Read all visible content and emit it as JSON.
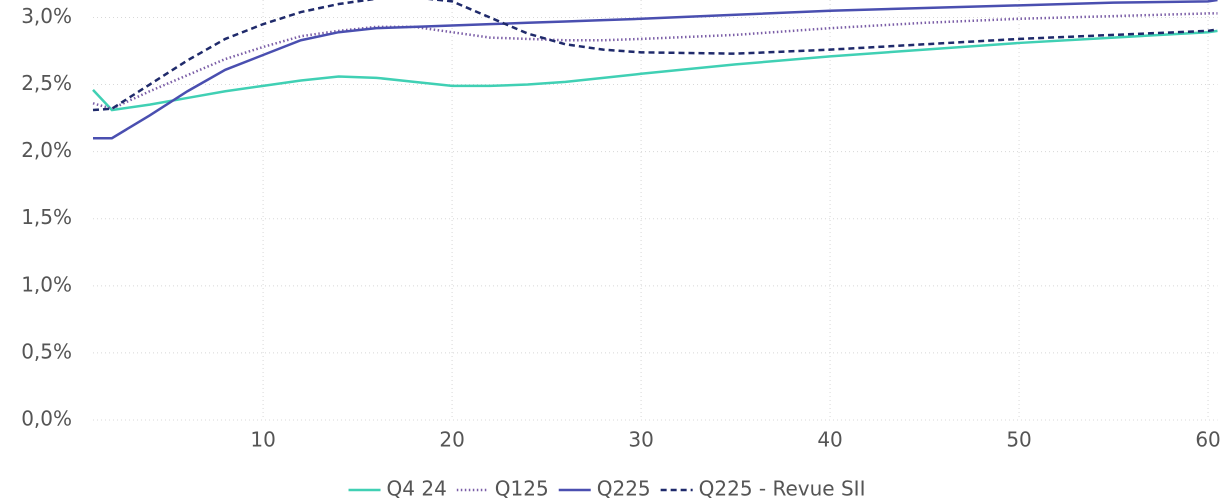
{
  "chart_data": {
    "type": "line",
    "x": [
      1,
      2,
      4,
      6,
      8,
      10,
      12,
      14,
      16,
      18,
      20,
      22,
      24,
      26,
      28,
      30,
      35,
      40,
      45,
      50,
      55,
      60,
      60.5
    ],
    "series": [
      {
        "name": "Q4 24",
        "color": "#40d0b4",
        "dash": "solid",
        "values": [
          2.46,
          2.31,
          2.35,
          2.4,
          2.45,
          2.49,
          2.53,
          2.56,
          2.55,
          2.52,
          2.49,
          2.49,
          2.5,
          2.52,
          2.55,
          2.58,
          2.65,
          2.71,
          2.76,
          2.81,
          2.85,
          2.89,
          2.9
        ]
      },
      {
        "name": "Q125",
        "color": "#7b5ea7",
        "dash": "dotted",
        "values": [
          2.36,
          2.32,
          2.45,
          2.57,
          2.69,
          2.78,
          2.86,
          2.9,
          2.93,
          2.93,
          2.89,
          2.85,
          2.84,
          2.83,
          2.83,
          2.84,
          2.87,
          2.92,
          2.96,
          2.99,
          3.01,
          3.03,
          3.03
        ]
      },
      {
        "name": "Q225",
        "color": "#4a4fb0",
        "dash": "solid",
        "values": [
          2.1,
          2.1,
          2.27,
          2.45,
          2.61,
          2.72,
          2.83,
          2.89,
          2.92,
          2.93,
          2.94,
          2.95,
          2.96,
          2.97,
          2.98,
          2.99,
          3.02,
          3.05,
          3.07,
          3.09,
          3.11,
          3.12,
          3.13
        ]
      },
      {
        "name": "Q225 - Revue SII",
        "color": "#1f2a6b",
        "dash": "dashed",
        "values": [
          2.31,
          2.32,
          2.5,
          2.68,
          2.84,
          2.95,
          3.04,
          3.1,
          3.14,
          3.15,
          3.12,
          3.0,
          2.88,
          2.8,
          2.76,
          2.74,
          2.73,
          2.76,
          2.8,
          2.84,
          2.87,
          2.9,
          2.91
        ]
      }
    ],
    "xlim": [
      1,
      60.5
    ],
    "xticks": [
      10,
      20,
      30,
      40,
      50,
      60
    ],
    "ylim": [
      0,
      3.13
    ],
    "yticks": [
      {
        "value": 0,
        "label": "0,0%"
      },
      {
        "value": 0.5,
        "label": "0,5%"
      },
      {
        "value": 1,
        "label": "1,0%"
      },
      {
        "value": 1.5,
        "label": "1,5%"
      },
      {
        "value": 2,
        "label": "2,0%"
      },
      {
        "value": 2.5,
        "label": "2,5%"
      },
      {
        "value": 3,
        "label": "3,0%"
      }
    ],
    "grid": true,
    "legend": "bottom"
  }
}
